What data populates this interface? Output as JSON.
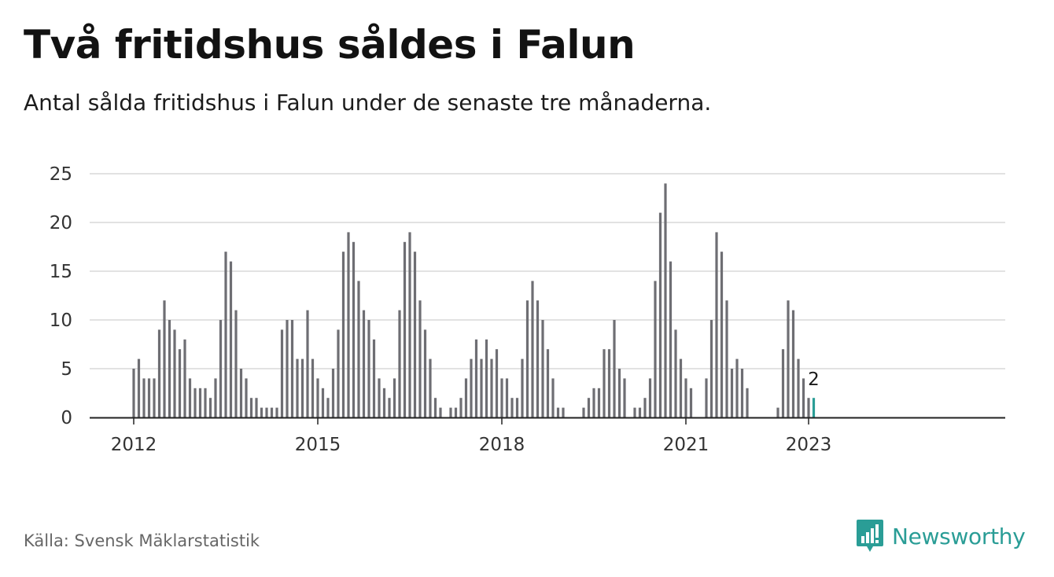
{
  "title": "Två fritidshus såldes i Falun",
  "subtitle": "Antal sålda fritidshus i Falun under de senaste tre månaderna.",
  "source": "Källa: Svensk Mäklarstatistik",
  "brand": {
    "name": "Newsworthy",
    "icon": "newsworthy-logo-icon",
    "color": "#2a9d96"
  },
  "chart_data": {
    "type": "bar",
    "start": "2012-01",
    "x_ticks": [
      "2012",
      "2015",
      "2018",
      "2021",
      "2023"
    ],
    "y_ticks": [
      0,
      5,
      10,
      15,
      20,
      25
    ],
    "ylim": [
      0,
      25
    ],
    "grid": true,
    "bar_color": "#6e6e73",
    "highlight_color": "#2a9d96",
    "highlight_label": "2",
    "values": [
      5,
      6,
      4,
      4,
      4,
      9,
      12,
      10,
      9,
      7,
      8,
      4,
      3,
      3,
      3,
      2,
      4,
      10,
      17,
      16,
      11,
      5,
      4,
      2,
      2,
      1,
      1,
      1,
      1,
      9,
      10,
      10,
      6,
      6,
      11,
      6,
      4,
      3,
      2,
      5,
      9,
      17,
      19,
      18,
      14,
      11,
      10,
      8,
      4,
      3,
      2,
      4,
      11,
      18,
      19,
      17,
      12,
      9,
      6,
      2,
      1,
      0,
      1,
      1,
      2,
      4,
      6,
      8,
      6,
      8,
      6,
      7,
      4,
      4,
      2,
      2,
      6,
      12,
      14,
      12,
      10,
      7,
      4,
      1,
      1,
      0,
      0,
      0,
      1,
      2,
      3,
      3,
      7,
      7,
      10,
      5,
      4,
      0,
      1,
      1,
      2,
      4,
      14,
      21,
      24,
      16,
      9,
      6,
      4,
      3,
      0,
      0,
      4,
      10,
      19,
      17,
      12,
      5,
      6,
      5,
      3,
      0,
      0,
      0,
      0,
      0,
      1,
      7,
      12,
      11,
      6,
      4,
      2,
      2
    ]
  }
}
